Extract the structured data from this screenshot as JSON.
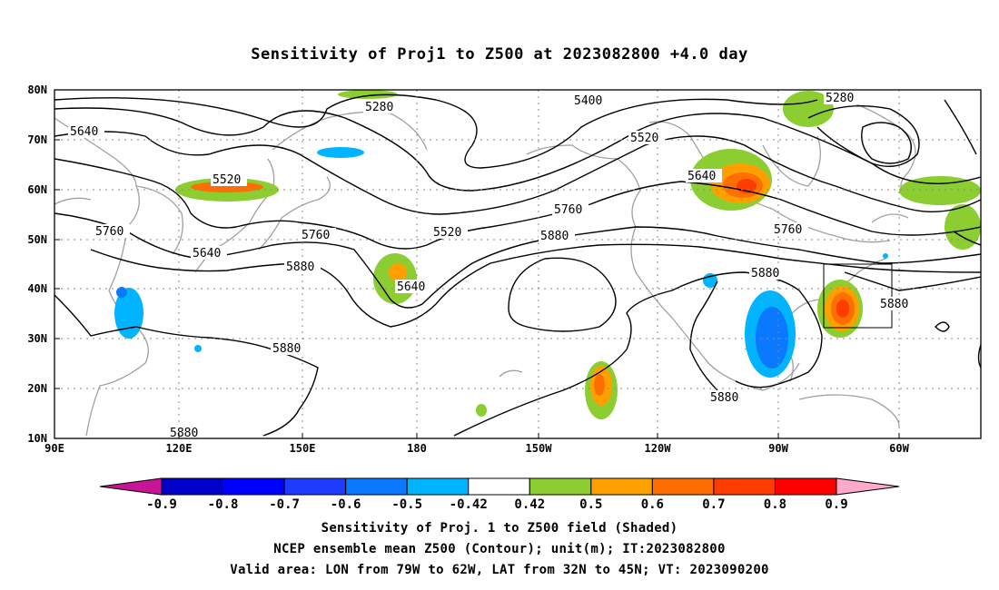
{
  "title": "Sensitivity of Proj1 to Z500 at 2023082800 +4.0 day",
  "lat_labels": [
    "80N",
    "70N",
    "60N",
    "50N",
    "40N",
    "30N",
    "20N",
    "10N"
  ],
  "lon_labels": [
    "90E",
    "120E",
    "150E",
    "180",
    "150W",
    "120W",
    "90W",
    "60W"
  ],
  "contour_labels": [
    {
      "text": "5280",
      "at": "north Pacific"
    },
    {
      "text": "5280",
      "at": "Baffin Bay"
    },
    {
      "text": "5400",
      "at": "Arctic Canada"
    },
    {
      "text": "5520",
      "at": "NE Asia"
    },
    {
      "text": "5520",
      "at": "Alaska"
    },
    {
      "text": "5520",
      "at": "Gulf of Alaska"
    },
    {
      "text": "5640",
      "at": "Siberia"
    },
    {
      "text": "5640",
      "at": "Sea of Japan"
    },
    {
      "text": "5640",
      "at": "central Pacific"
    },
    {
      "text": "5640",
      "at": "Hudson Bay"
    },
    {
      "text": "5760",
      "at": "China"
    },
    {
      "text": "5760",
      "at": "north Pacific"
    },
    {
      "text": "5760",
      "at": "NE Pacific"
    },
    {
      "text": "5760",
      "at": "Great Lakes"
    },
    {
      "text": "5880",
      "at": "NW Pacific"
    },
    {
      "text": "5880",
      "at": "Philippine Sea"
    },
    {
      "text": "5880",
      "at": "South China Sea"
    },
    {
      "text": "5880",
      "at": "eastern Pacific"
    },
    {
      "text": "5880",
      "at": "US midwest"
    },
    {
      "text": "5880",
      "at": "western Atlantic"
    },
    {
      "text": "5880",
      "at": "Gulf of Mexico"
    }
  ],
  "colorbar": {
    "labels": [
      "-0.9",
      "-0.8",
      "-0.7",
      "-0.6",
      "-0.5",
      "-0.42",
      "0.42",
      "0.5",
      "0.6",
      "0.7",
      "0.8",
      "0.9"
    ],
    "colors": [
      "#0000c8",
      "#0000ff",
      "#1e3cff",
      "#0a78ff",
      "#00b4ff",
      "#ffffff",
      "#8ccd32",
      "#ffa000",
      "#ff6e00",
      "#ff3c00",
      "#ff0000"
    ],
    "low_extend": "#c81496",
    "high_extend": "#ffaac8"
  },
  "captions": [
    "Sensitivity of Proj. 1 to Z500 field (Shaded)",
    "NCEP ensemble mean Z500 (Contour); unit(m); IT:2023082800",
    "Valid area: LON from 79W to 62W, LAT from 32N to 45N; VT: 2023090200"
  ],
  "valid_area": {
    "lon_min": -79,
    "lon_max": -62,
    "lat_min": 32,
    "lat_max": 45
  }
}
